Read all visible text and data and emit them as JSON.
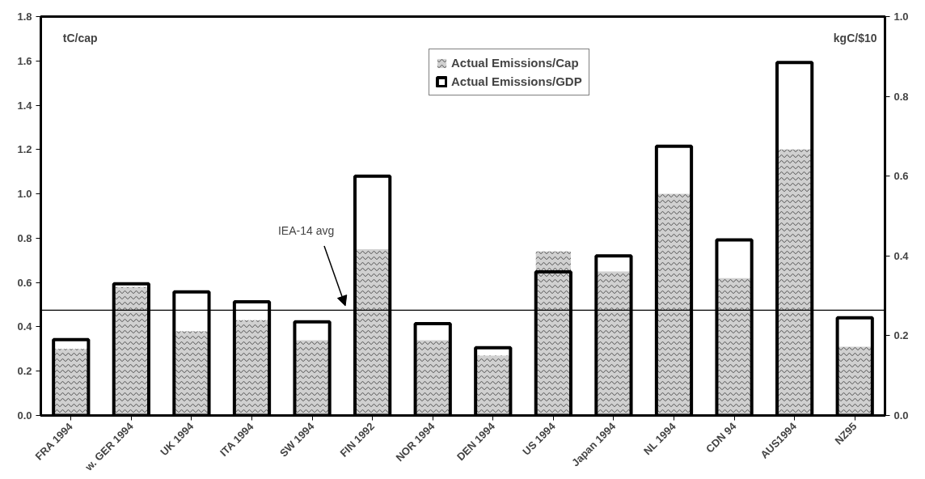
{
  "chart_data": {
    "type": "bar",
    "categories": [
      "FRA 1994",
      "w. GER 1994",
      "UK 1994",
      "ITA 1994",
      "SW 1994",
      "FIN 1992",
      "NOR 1994",
      "DEN 1994",
      "US 1994",
      "Japan 1994",
      "NL 1994",
      "CDN 94",
      "AUS1994",
      "NZ95"
    ],
    "series": [
      {
        "name": "Actual Emissions/Cap",
        "color": "#d0d0d0",
        "values": [
          0.3,
          0.58,
          0.38,
          0.43,
          0.34,
          0.75,
          0.34,
          0.27,
          0.74,
          0.65,
          1.0,
          0.62,
          1.2,
          0.31
        ]
      },
      {
        "name": "Actual Emissions/GDP",
        "color": "#000000",
        "axis": "y2",
        "values": [
          0.19,
          0.33,
          0.31,
          0.285,
          0.235,
          0.6,
          0.23,
          0.17,
          0.36,
          0.4,
          0.675,
          0.44,
          0.885,
          0.245
        ]
      }
    ],
    "ylabel": "tC/cap",
    "y2label": "kgC/$10",
    "ylim": [
      0,
      1.8
    ],
    "yticks": [
      {
        "value": 0,
        "label": "0.0"
      },
      {
        "value": 0.2,
        "label": "0.2"
      },
      {
        "value": 0.4,
        "label": "0.4"
      },
      {
        "value": 0.6,
        "label": "0.6"
      },
      {
        "value": 0.8,
        "label": "0.8"
      },
      {
        "value": 1.0,
        "label": "1.0"
      },
      {
        "value": 1.2,
        "label": "1.2"
      },
      {
        "value": 1.4,
        "label": "1.4"
      },
      {
        "value": 1.6,
        "label": "1.6"
      },
      {
        "value": 1.8,
        "label": "1.8"
      }
    ],
    "y2lim": [
      0,
      1.0
    ],
    "y2ticks": [
      {
        "value": 0,
        "label": "0.0"
      },
      {
        "value": 0.2,
        "label": "0.2"
      },
      {
        "value": 0.4,
        "label": "0.4"
      },
      {
        "value": 0.6,
        "label": "0.6"
      },
      {
        "value": 0.8,
        "label": "0.8"
      },
      {
        "value": 1.0,
        "label": "1.0"
      }
    ],
    "ref_lines": [
      {
        "axis": "y",
        "value": 0.475,
        "label": "IEA-14 avg",
        "color": "#000000"
      }
    ],
    "legend": "top",
    "grid": false
  }
}
